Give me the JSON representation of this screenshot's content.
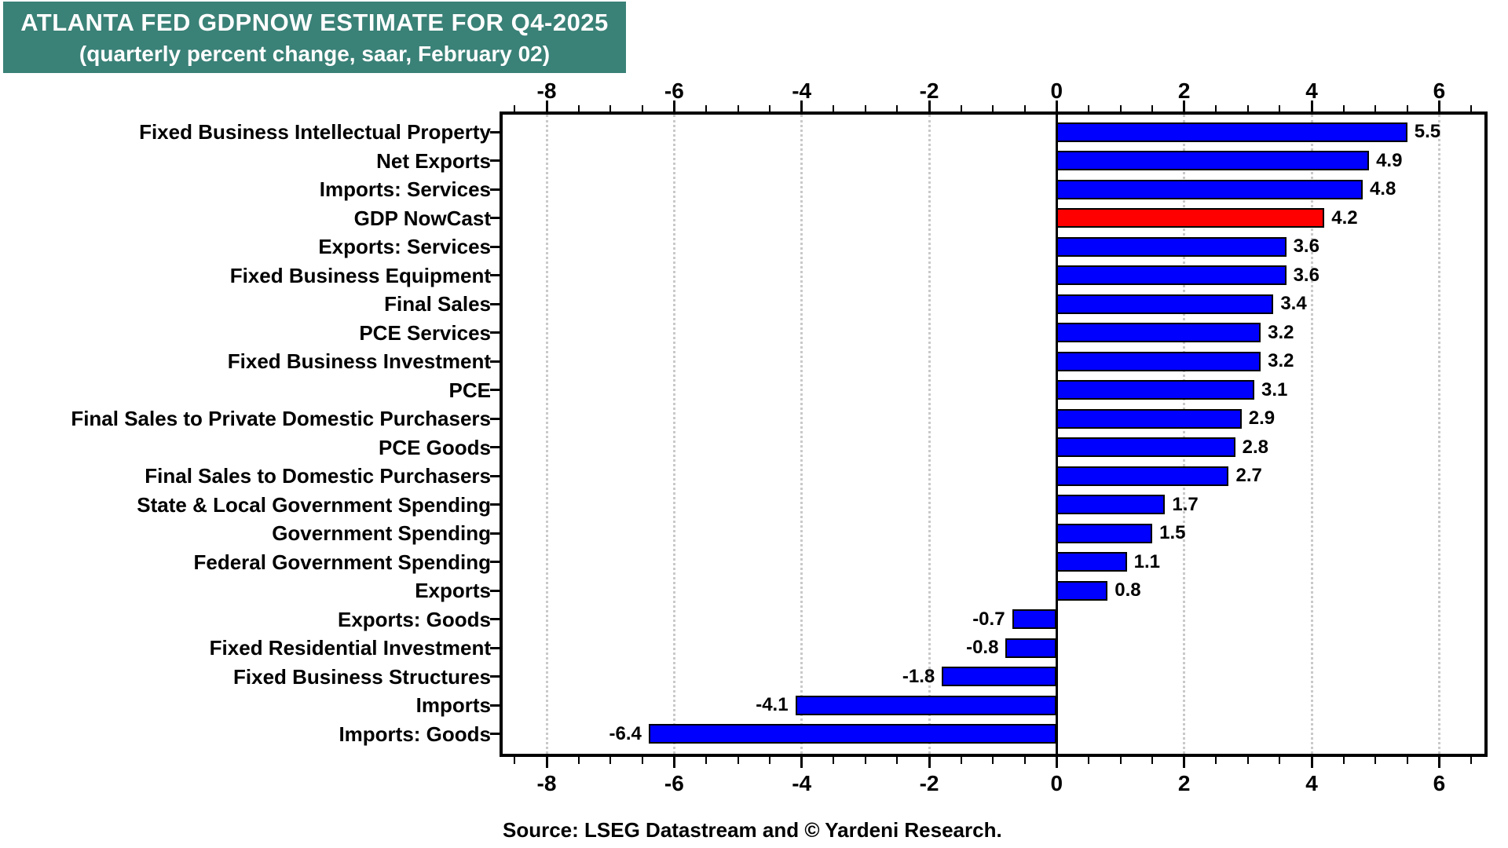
{
  "title": {
    "line1": "ATLANTA FED GDPNOW ESTIMATE FOR Q4-2025",
    "line2": "(quarterly percent change, saar, February 02)"
  },
  "source": "Source: LSEG Datastream and © Yardeni Research.",
  "colors": {
    "title_bg": "#3A8177",
    "title_text": "#FFFFFF",
    "bar_blue": "#0000FE",
    "bar_red": "#FF0000",
    "bar_border": "#000000",
    "grid": "#C9C9C9",
    "axis": "#000000"
  },
  "chart_data": {
    "type": "bar",
    "orientation": "horizontal",
    "title": "ATLANTA FED GDPNOW ESTIMATE FOR Q4-2025",
    "subtitle": "(quarterly percent change, saar, February 02)",
    "categories": [
      "Fixed Business Intellectual Property",
      "Net Exports",
      "Imports: Services",
      "GDP NowCast",
      "Exports: Services",
      "Fixed Business Equipment",
      "Final Sales",
      "PCE Services",
      "Fixed Business Investment",
      "PCE",
      "Final Sales to Private Domestic Purchasers",
      "PCE Goods",
      "Final Sales to Domestic Purchasers",
      "State & Local Government Spending",
      "Government Spending",
      "Federal Government Spending",
      "Exports",
      "Exports: Goods",
      "Fixed Residential Investment",
      "Fixed Business Structures",
      "Imports",
      "Imports: Goods"
    ],
    "values": [
      5.5,
      4.9,
      4.8,
      4.2,
      3.6,
      3.6,
      3.4,
      3.2,
      3.2,
      3.1,
      2.9,
      2.8,
      2.7,
      1.7,
      1.5,
      1.1,
      0.8,
      -0.7,
      -0.8,
      -1.8,
      -4.1,
      -6.4
    ],
    "value_label_format": "one decimal, at bar end",
    "highlight": {
      "index": 3,
      "category": "GDP NowCast",
      "color": "#FF0000"
    },
    "default_bar_color": "#0000FE",
    "xlim": [
      -8.69,
      6.71
    ],
    "x_major_ticks": [
      -8,
      -6,
      -4,
      -2,
      0,
      2,
      4,
      6
    ],
    "x_minor_tick_step": 0.5,
    "xlabel": "",
    "ylabel": "",
    "grid": "vertical dotted lines at major ticks (except 0), solid black zero line",
    "legend": "none"
  }
}
